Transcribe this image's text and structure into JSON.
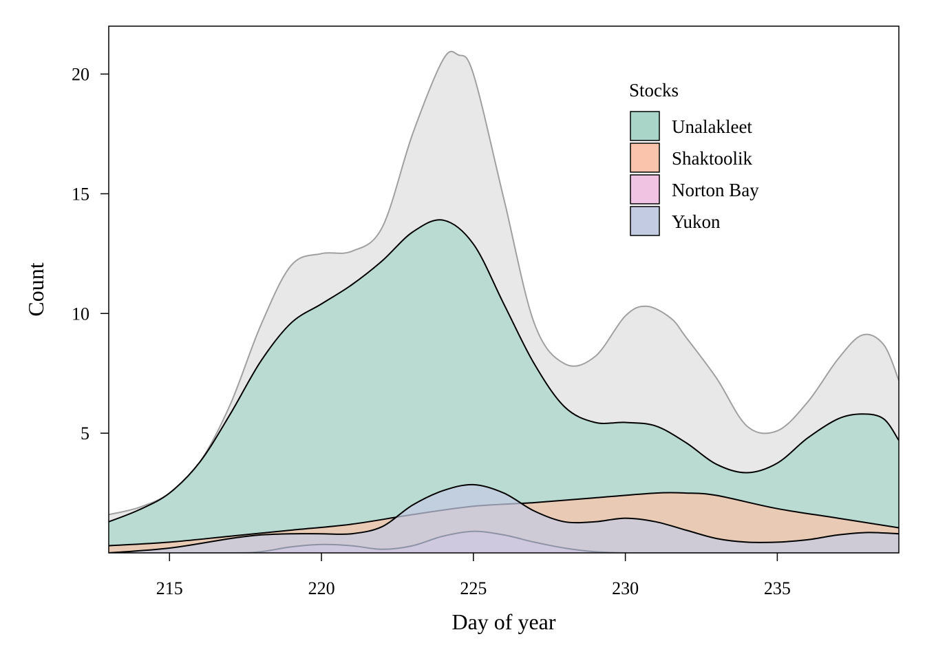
{
  "chart_data": {
    "type": "area",
    "title": "",
    "xlabel": "Day of year",
    "ylabel": "Count",
    "xlim": [
      213,
      239
    ],
    "ylim": [
      0,
      22
    ],
    "xticks": [
      "215",
      "220",
      "225",
      "230",
      "235"
    ],
    "yticks": [
      "5",
      "10",
      "15",
      "20"
    ],
    "grid": false,
    "legend": {
      "title": "Stocks",
      "placement": "top-right",
      "entries": [
        {
          "label": "Unalakleet",
          "color": "#a8d5c8"
        },
        {
          "label": "Shaktoolik",
          "color": "#f9c4ab"
        },
        {
          "label": "Norton Bay",
          "color": "#efc3e1"
        },
        {
          "label": "Yukon",
          "color": "#c3cbe3"
        }
      ]
    },
    "total": {
      "color": "#e6e6e6",
      "x": [
        213,
        214,
        215,
        216,
        217,
        218,
        219,
        220,
        221,
        222,
        223,
        224,
        224.5,
        225,
        226,
        227,
        228,
        229,
        230,
        230.7,
        231.5,
        232,
        233,
        234,
        235,
        236,
        237,
        237.8,
        238.5,
        239
      ],
      "y": [
        1.6,
        1.9,
        2.5,
        3.8,
        6.2,
        9.5,
        12.0,
        12.5,
        12.6,
        13.6,
        17.5,
        20.6,
        20.8,
        20.0,
        14.8,
        9.6,
        7.9,
        8.2,
        9.9,
        10.3,
        9.8,
        9.0,
        7.3,
        5.3,
        5.1,
        6.3,
        8.1,
        9.1,
        8.7,
        7.2
      ]
    },
    "series": [
      {
        "name": "Unalakleet",
        "color": "#a8d5c8",
        "x": [
          213,
          214,
          215,
          216,
          217,
          218,
          219,
          220,
          221,
          222,
          223,
          224,
          225,
          226,
          227,
          228,
          229,
          230,
          231,
          232,
          233,
          234,
          235,
          236,
          237,
          237.8,
          238.5,
          239
        ],
        "y": [
          1.3,
          1.8,
          2.5,
          3.8,
          5.8,
          8.0,
          9.6,
          10.4,
          11.2,
          12.2,
          13.4,
          13.9,
          12.9,
          10.4,
          7.9,
          6.1,
          5.45,
          5.45,
          5.3,
          4.6,
          3.7,
          3.35,
          3.75,
          4.8,
          5.6,
          5.8,
          5.6,
          4.7
        ]
      },
      {
        "name": "Shaktoolik",
        "color": "#f9c4ab",
        "x": [
          213,
          215,
          217,
          219,
          221,
          223,
          225,
          227,
          229,
          231,
          232,
          233,
          235,
          237,
          239
        ],
        "y": [
          0.3,
          0.45,
          0.7,
          0.95,
          1.2,
          1.6,
          1.95,
          2.1,
          2.3,
          2.5,
          2.5,
          2.4,
          1.85,
          1.45,
          1.05
        ]
      },
      {
        "name": "Norton Bay",
        "color": "#efc3e1",
        "x": [
          213,
          217,
          218,
          219,
          220,
          221,
          222,
          223,
          224,
          225,
          226,
          227,
          228,
          229,
          230,
          231,
          239
        ],
        "y": [
          0.0,
          0.0,
          0.05,
          0.25,
          0.35,
          0.3,
          0.15,
          0.3,
          0.7,
          0.9,
          0.75,
          0.45,
          0.2,
          0.05,
          0.0,
          0.0,
          0.0
        ]
      },
      {
        "name": "Yukon",
        "color": "#c3cbe3",
        "x": [
          213,
          215,
          217,
          218,
          219,
          220,
          221,
          222,
          223,
          224,
          225,
          226,
          227,
          228,
          229,
          230,
          231,
          232,
          233,
          234,
          235,
          236,
          237,
          238,
          239
        ],
        "y": [
          0.0,
          0.2,
          0.6,
          0.75,
          0.8,
          0.8,
          0.8,
          1.1,
          2.0,
          2.6,
          2.85,
          2.5,
          1.75,
          1.3,
          1.3,
          1.45,
          1.3,
          0.95,
          0.6,
          0.45,
          0.45,
          0.55,
          0.75,
          0.85,
          0.8
        ]
      }
    ]
  }
}
